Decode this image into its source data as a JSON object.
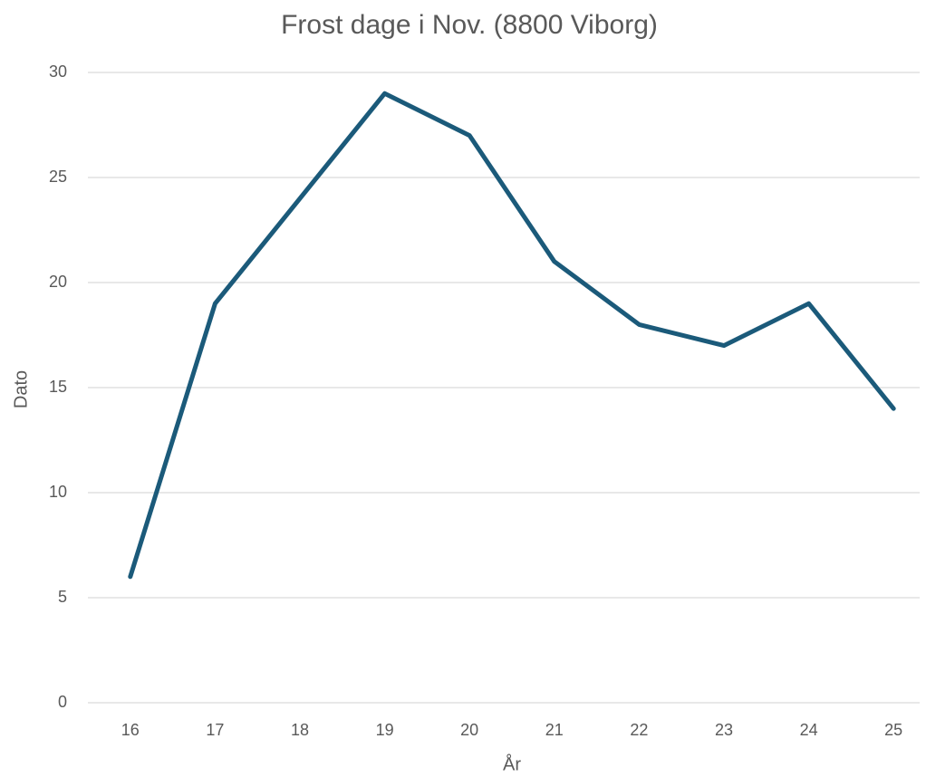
{
  "chart_data": {
    "type": "line",
    "title": "Frost dage i Nov. (8800 Viborg)",
    "x_label": "År",
    "y_label": "Dato",
    "categories": [
      "16",
      "17",
      "18",
      "19",
      "20",
      "21",
      "22",
      "23",
      "24",
      "25"
    ],
    "series": [
      {
        "name": "Dato",
        "color": "#1b5a7a",
        "values": [
          6,
          19,
          24,
          29,
          27,
          21,
          18,
          17,
          19,
          14
        ]
      }
    ],
    "ylim": [
      0,
      30
    ],
    "yticks": [
      0,
      5,
      10,
      15,
      20,
      25,
      30
    ],
    "grid": true,
    "legend": false
  }
}
